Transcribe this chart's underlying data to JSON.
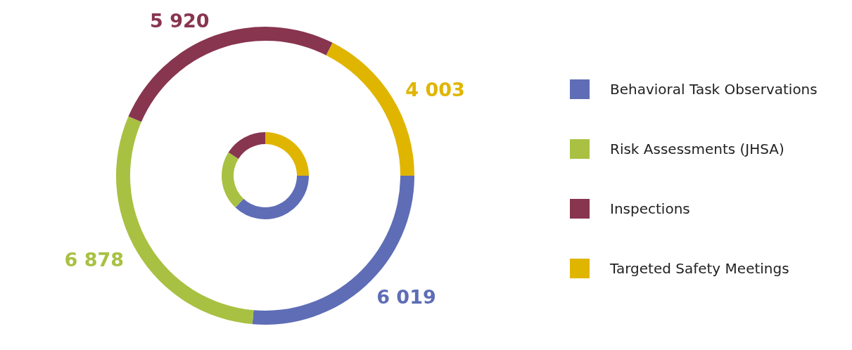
{
  "chart_data": {
    "type": "donut",
    "categories": [
      "Behavioral Task Observations",
      "Risk Assessments (JHSA)",
      "Inspections",
      "Targeted Safety Meetings"
    ],
    "colors": [
      "#5e6db5",
      "#a8c142",
      "#88354f",
      "#e0b500"
    ],
    "legend": "right",
    "series": [
      {
        "values": [
          37,
          22,
          16,
          25
        ]
      },
      {
        "values": [
          6019,
          6878,
          5920,
          4003
        ],
        "value_labels": [
          "6 019",
          "6 878",
          "5 920",
          "4 003"
        ]
      }
    ]
  }
}
